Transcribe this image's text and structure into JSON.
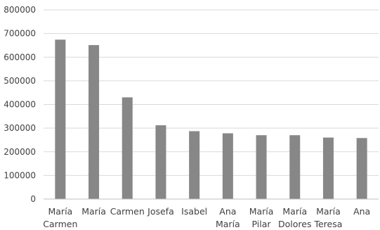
{
  "chart_data": {
    "type": "bar",
    "categories": [
      [
        "María",
        "Carmen"
      ],
      [
        "María"
      ],
      [
        "Carmen"
      ],
      [
        "Josefa"
      ],
      [
        "Isabel"
      ],
      [
        "Ana",
        "María"
      ],
      [
        "María",
        "Pilar"
      ],
      [
        "María",
        "Dolores"
      ],
      [
        "María",
        "Teresa"
      ],
      [
        "Ana"
      ]
    ],
    "values": [
      674000,
      651000,
      430000,
      312000,
      287000,
      278000,
      270000,
      270000,
      260000,
      258000
    ],
    "ylim": [
      0,
      800000
    ],
    "yticks": [
      0,
      100000,
      200000,
      300000,
      400000,
      500000,
      600000,
      700000,
      800000
    ],
    "ytick_labels": [
      "0",
      "100000",
      "200000",
      "300000",
      "400000",
      "500000",
      "600000",
      "700000",
      "800000"
    ],
    "grid": true,
    "bar_color": "#878787",
    "title": "",
    "xlabel": "",
    "ylabel": ""
  }
}
